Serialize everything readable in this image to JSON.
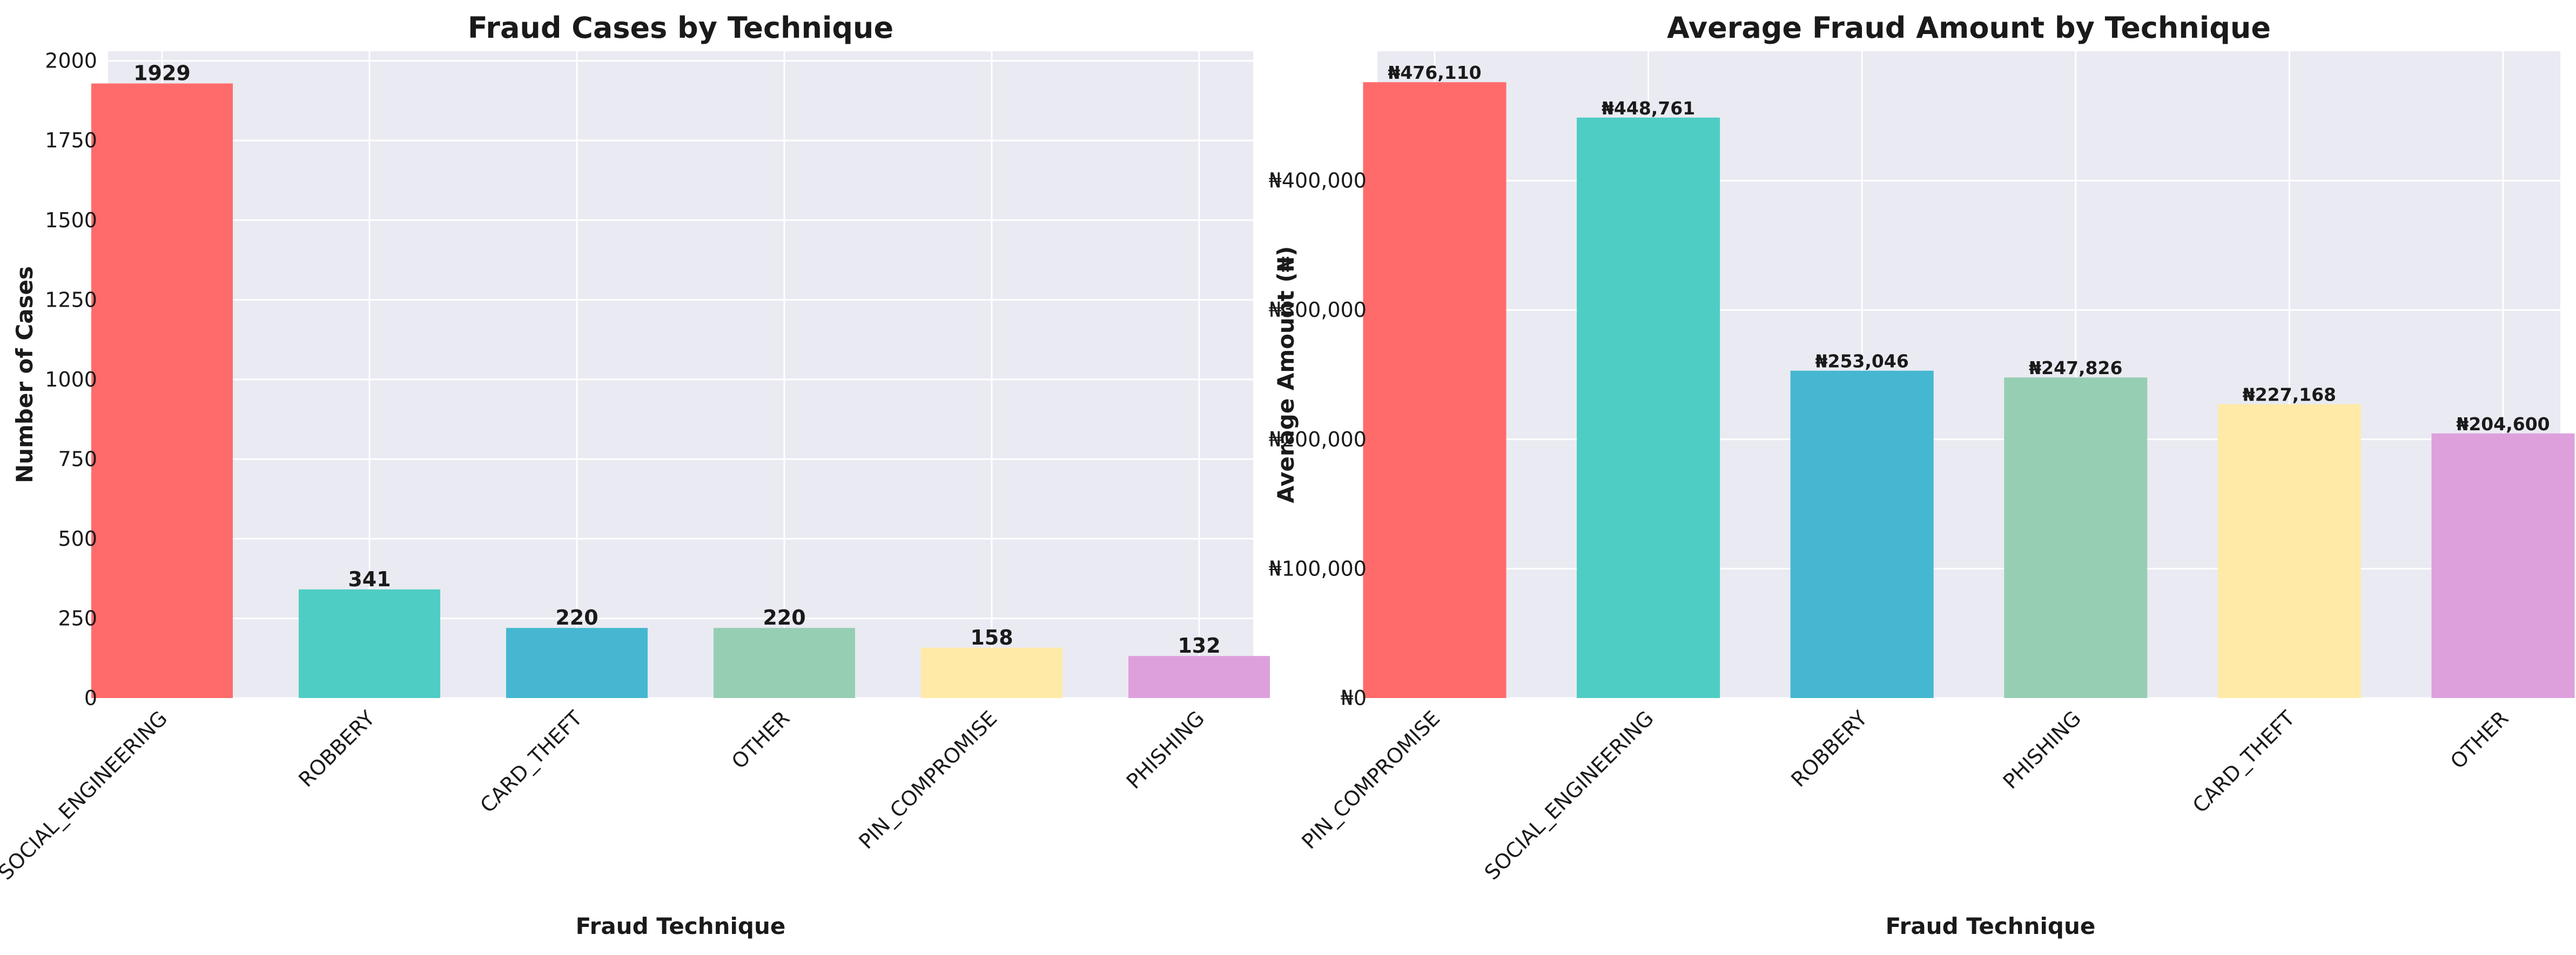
{
  "chart_data": [
    {
      "type": "bar",
      "title": "Fraud Cases by Technique",
      "xlabel": "Fraud Technique",
      "ylabel": "Number of Cases",
      "categories": [
        "SOCIAL_ENGINEERING",
        "ROBBERY",
        "CARD_THEFT",
        "OTHER",
        "PIN_COMPROMISE",
        "PHISHING"
      ],
      "values": [
        1929,
        341,
        220,
        220,
        158,
        132
      ],
      "value_labels": [
        "1929",
        "341",
        "220",
        "220",
        "158",
        "132"
      ],
      "colors": [
        "#ff6b6b",
        "#4ecdc4",
        "#45b7d1",
        "#96ceb4",
        "#ffeaa7",
        "#dda0dd"
      ],
      "ylim": [
        0,
        2030
      ],
      "yticks": [
        0,
        250,
        500,
        750,
        1000,
        1250,
        1500,
        1750,
        2000
      ],
      "ytick_labels": [
        "0",
        "250",
        "500",
        "750",
        "1000",
        "1250",
        "1500",
        "1750",
        "2000"
      ],
      "grid": true
    },
    {
      "type": "bar",
      "title": "Average Fraud Amount by Technique",
      "xlabel": "Fraud Technique",
      "ylabel": "Average Amount (₦)",
      "categories": [
        "PIN_COMPROMISE",
        "SOCIAL_ENGINEERING",
        "ROBBERY",
        "PHISHING",
        "CARD_THEFT",
        "OTHER"
      ],
      "values": [
        476110,
        448761,
        253046,
        247826,
        227168,
        204600
      ],
      "value_labels": [
        "₦476,110",
        "₦448,761",
        "₦253,046",
        "₦247,826",
        "₦227,168",
        "₦204,600"
      ],
      "colors": [
        "#ff6b6b",
        "#4ecdc4",
        "#45b7d1",
        "#96ceb4",
        "#ffeaa7",
        "#dda0dd"
      ],
      "ylim": [
        0,
        500000
      ],
      "yticks": [
        0,
        100000,
        200000,
        300000,
        400000
      ],
      "ytick_labels": [
        "₦0",
        "₦100,000",
        "₦200,000",
        "₦300,000",
        "₦400,000"
      ],
      "grid": true
    }
  ]
}
